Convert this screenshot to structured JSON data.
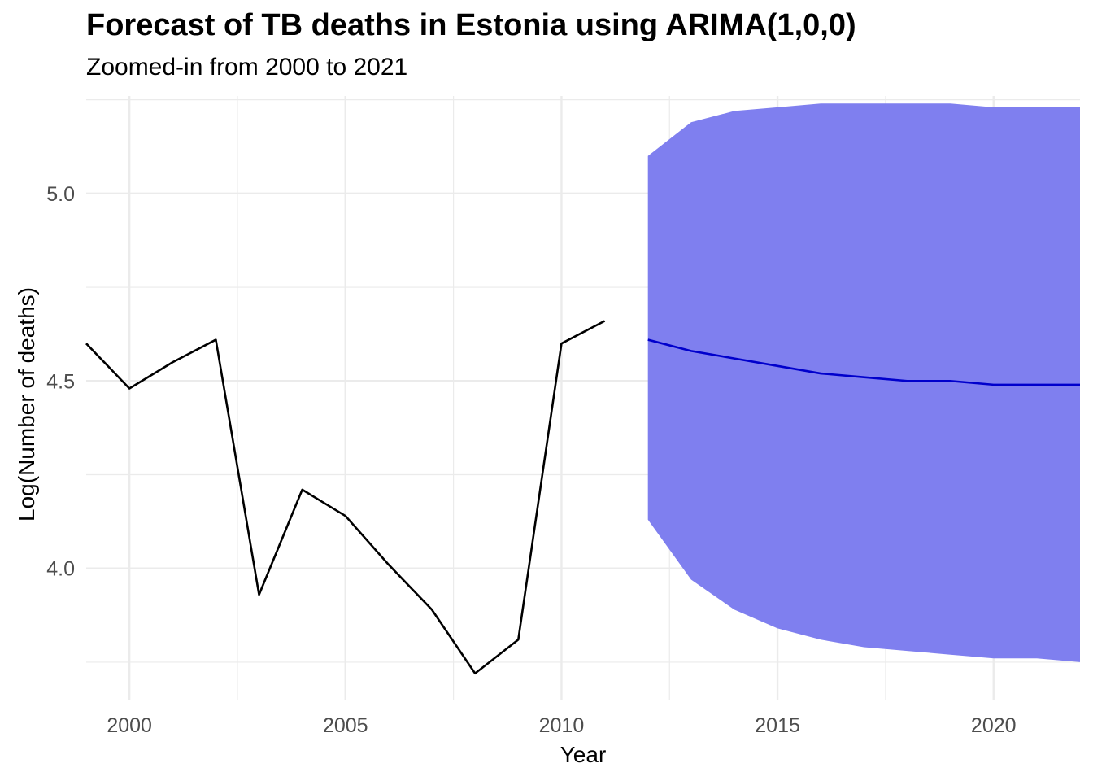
{
  "chart_data": {
    "type": "line",
    "title": "Forecast of TB deaths in Estonia using ARIMA(1,0,0)",
    "subtitle": "Zoomed-in from 2000 to 2021",
    "xlabel": "Year",
    "ylabel": "Log(Number of deaths)",
    "xlim": [
      1999,
      2022
    ],
    "ylim": [
      3.65,
      5.26
    ],
    "x_ticks": [
      2000,
      2005,
      2010,
      2015,
      2020
    ],
    "y_ticks": [
      4.0,
      4.5,
      5.0
    ],
    "x_tick_labels": [
      "2000",
      "2005",
      "2010",
      "2015",
      "2020"
    ],
    "y_tick_labels": [
      "4.0",
      "4.5",
      "5.0"
    ],
    "grid": true,
    "legend": "none",
    "series": [
      {
        "role": "observed",
        "color": "#000000",
        "x": [
          1999,
          2000,
          2001,
          2002,
          2003,
          2004,
          2005,
          2006,
          2007,
          2008,
          2009,
          2010,
          2011
        ],
        "y": [
          4.6,
          4.48,
          4.55,
          4.61,
          3.93,
          4.21,
          4.14,
          4.01,
          3.89,
          3.72,
          3.81,
          4.6,
          4.66
        ]
      },
      {
        "role": "forecast",
        "color": "#0000cc",
        "x": [
          2012,
          2013,
          2014,
          2015,
          2016,
          2017,
          2018,
          2019,
          2020,
          2021,
          2022
        ],
        "y": [
          4.61,
          4.58,
          4.56,
          4.54,
          4.52,
          4.51,
          4.5,
          4.5,
          4.49,
          4.49,
          4.49
        ]
      }
    ],
    "interval": {
      "color": "#7f7fef",
      "x": [
        2012,
        2013,
        2014,
        2015,
        2016,
        2017,
        2018,
        2019,
        2020,
        2021,
        2022
      ],
      "lower": [
        4.13,
        3.97,
        3.89,
        3.84,
        3.81,
        3.79,
        3.78,
        3.77,
        3.76,
        3.76,
        3.75
      ],
      "upper": [
        5.1,
        5.19,
        5.22,
        5.23,
        5.24,
        5.24,
        5.24,
        5.24,
        5.23,
        5.23,
        5.23
      ]
    }
  }
}
